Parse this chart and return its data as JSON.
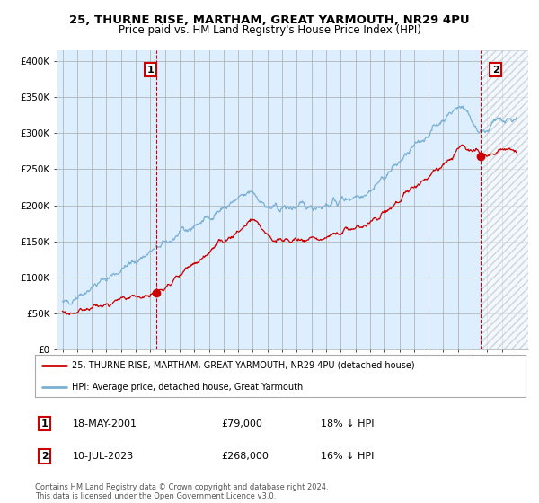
{
  "title": "25, THURNE RISE, MARTHAM, GREAT YARMOUTH, NR29 4PU",
  "subtitle": "Price paid vs. HM Land Registry's House Price Index (HPI)",
  "ylabel_ticks": [
    "£0",
    "£50K",
    "£100K",
    "£150K",
    "£200K",
    "£250K",
    "£300K",
    "£350K",
    "£400K"
  ],
  "ytick_values": [
    0,
    50000,
    100000,
    150000,
    200000,
    250000,
    300000,
    350000,
    400000
  ],
  "ylim": [
    0,
    415000
  ],
  "xlim_start": 1994.6,
  "xlim_end": 2026.8,
  "sale1": {
    "date_num": 2001.38,
    "price": 79000,
    "label": "1"
  },
  "sale2": {
    "date_num": 2023.53,
    "price": 268000,
    "label": "2"
  },
  "legend_entry1": "25, THURNE RISE, MARTHAM, GREAT YARMOUTH, NR29 4PU (detached house)",
  "legend_entry2": "HPI: Average price, detached house, Great Yarmouth",
  "footer": "Contains HM Land Registry data © Crown copyright and database right 2024.\nThis data is licensed under the Open Government Licence v3.0.",
  "hpi_color": "#7ab0d4",
  "price_color": "#cc0000",
  "plot_bg_color": "#ddeeff",
  "bg_color": "#ffffff",
  "grid_color": "#aaaaaa",
  "future_hatch_color": "#bbbbbb"
}
